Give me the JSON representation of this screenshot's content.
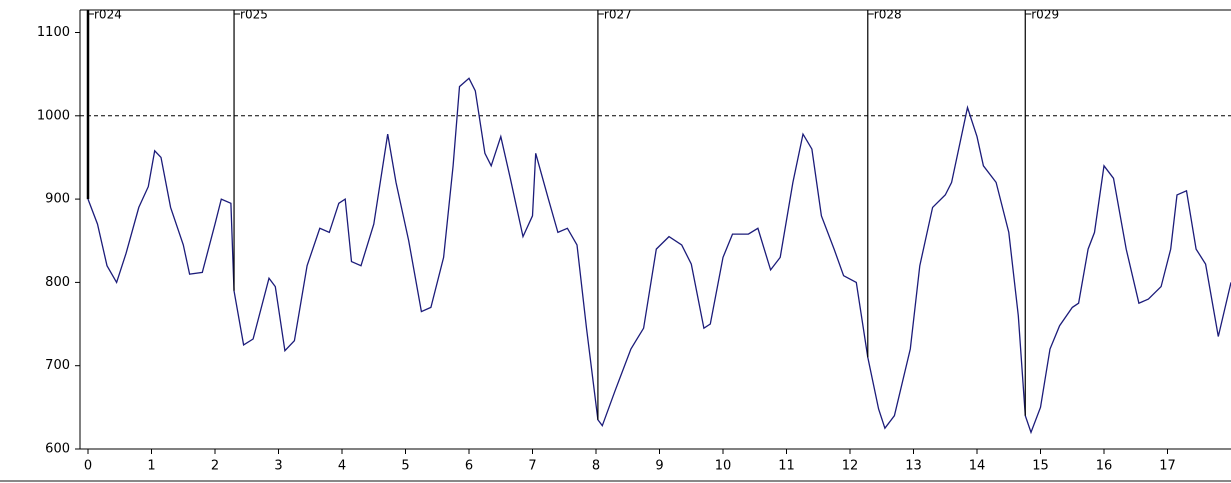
{
  "chart_data": {
    "type": "line",
    "x": [
      0,
      0.15,
      0.3,
      0.45,
      0.6,
      0.8,
      0.95,
      1.05,
      1.15,
      1.3,
      1.5,
      1.6,
      1.8,
      2.0,
      2.1,
      2.25,
      2.3,
      2.45,
      2.6,
      2.85,
      2.95,
      3.1,
      3.25,
      3.45,
      3.65,
      3.8,
      3.95,
      4.05,
      4.15,
      4.3,
      4.5,
      4.72,
      4.85,
      5.05,
      5.25,
      5.4,
      5.6,
      5.75,
      5.85,
      6.0,
      6.1,
      6.25,
      6.35,
      6.5,
      6.65,
      6.85,
      7.0,
      7.05,
      7.25,
      7.4,
      7.55,
      7.7,
      7.85,
      8.03,
      8.1,
      8.3,
      8.55,
      8.75,
      8.95,
      9.15,
      9.35,
      9.5,
      9.7,
      9.8,
      10.0,
      10.15,
      10.4,
      10.55,
      10.75,
      10.9,
      11.1,
      11.26,
      11.4,
      11.55,
      11.75,
      11.9,
      12.1,
      12.28,
      12.45,
      12.55,
      12.7,
      12.95,
      13.1,
      13.3,
      13.5,
      13.6,
      13.85,
      14.0,
      14.1,
      14.3,
      14.5,
      14.65,
      14.76,
      14.85,
      15.0,
      15.15,
      15.3,
      15.5,
      15.6,
      15.75,
      15.85,
      16.0,
      16.15,
      16.35,
      16.55,
      16.7,
      16.9,
      17.05,
      17.15,
      17.3,
      17.45,
      17.6,
      17.8,
      18.0
    ],
    "series": [
      {
        "color": "#1c1c7a",
        "values": [
          900,
          870,
          820,
          800,
          835,
          890,
          915,
          958,
          950,
          890,
          845,
          810,
          812,
          870,
          900,
          895,
          790,
          725,
          732,
          805,
          795,
          718,
          730,
          820,
          865,
          860,
          895,
          900,
          825,
          820,
          870,
          978,
          920,
          850,
          765,
          770,
          830,
          940,
          1035,
          1045,
          1030,
          955,
          940,
          975,
          925,
          855,
          880,
          955,
          900,
          860,
          865,
          845,
          745,
          635,
          628,
          670,
          720,
          745,
          840,
          855,
          845,
          822,
          745,
          750,
          830,
          858,
          858,
          865,
          815,
          830,
          920,
          978,
          960,
          880,
          840,
          808,
          800,
          710,
          648,
          625,
          640,
          720,
          820,
          890,
          905,
          920,
          1010,
          975,
          940,
          920,
          860,
          760,
          640,
          620,
          650,
          720,
          748,
          770,
          775,
          840,
          860,
          940,
          925,
          840,
          775,
          780,
          795,
          840,
          905,
          910,
          840,
          822,
          735,
          800
        ]
      }
    ],
    "markers": [
      {
        "label": "r024",
        "x": 0
      },
      {
        "label": "r025",
        "x": 2.3
      },
      {
        "label": "r027",
        "x": 8.03
      },
      {
        "label": "r028",
        "x": 12.28
      },
      {
        "label": "r029",
        "x": 14.76
      }
    ],
    "reference_line": 1000,
    "xlim": [
      0,
      18
    ],
    "xticks": [
      0,
      1,
      2,
      3,
      4,
      5,
      6,
      7,
      8,
      9,
      10,
      11,
      12,
      13,
      14,
      15,
      16,
      17
    ],
    "ylim": [
      600,
      1127
    ],
    "yticks": [
      600,
      700,
      800,
      900,
      1000,
      1100
    ],
    "grid": false
  }
}
